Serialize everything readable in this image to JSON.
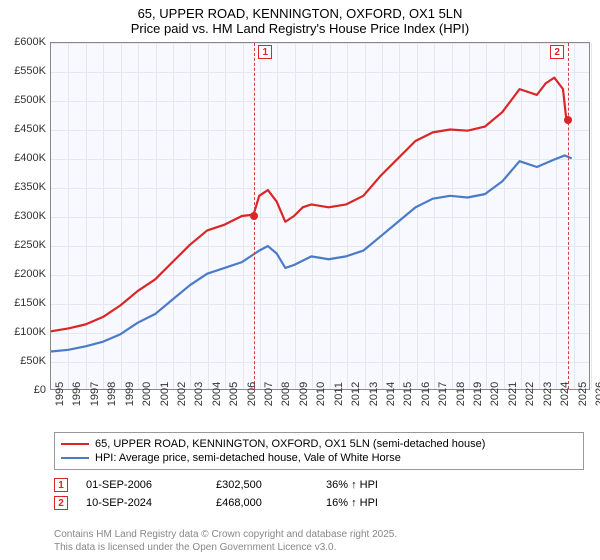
{
  "chart": {
    "type": "line",
    "title_line1": "65, UPPER ROAD, KENNINGTON, OXFORD, OX1 5LN",
    "title_line2": "Price paid vs. HM Land Registry's House Price Index (HPI)",
    "title_fontsize": 13,
    "background_color": "#f8f9ff",
    "grid_color": "#e4e6f0",
    "border_color": "#888888",
    "y_axis": {
      "min": 0,
      "max": 600000,
      "tick_step": 50000,
      "labels": [
        "£0",
        "£50K",
        "£100K",
        "£150K",
        "£200K",
        "£250K",
        "£300K",
        "£350K",
        "£400K",
        "£450K",
        "£500K",
        "£550K",
        "£600K"
      ]
    },
    "x_axis": {
      "min": 1995,
      "max": 2026,
      "tick_step": 1,
      "labels": [
        "1995",
        "1996",
        "1997",
        "1998",
        "1999",
        "2000",
        "2001",
        "2002",
        "2003",
        "2004",
        "2005",
        "2006",
        "2007",
        "2008",
        "2009",
        "2010",
        "2011",
        "2012",
        "2013",
        "2014",
        "2015",
        "2016",
        "2017",
        "2018",
        "2019",
        "2020",
        "2021",
        "2022",
        "2023",
        "2024",
        "2025",
        "2026"
      ]
    },
    "series": [
      {
        "name": "price_paid",
        "label": "65, UPPER ROAD, KENNINGTON, OXFORD, OX1 5LN (semi-detached house)",
        "color": "#d92626",
        "line_width": 2.2,
        "points": [
          [
            1995,
            100000
          ],
          [
            1996,
            105000
          ],
          [
            1997,
            112000
          ],
          [
            1998,
            125000
          ],
          [
            1999,
            145000
          ],
          [
            2000,
            170000
          ],
          [
            2001,
            190000
          ],
          [
            2002,
            220000
          ],
          [
            2003,
            250000
          ],
          [
            2004,
            275000
          ],
          [
            2005,
            285000
          ],
          [
            2006,
            300000
          ],
          [
            2006.67,
            302500
          ],
          [
            2007,
            335000
          ],
          [
            2007.5,
            345000
          ],
          [
            2008,
            325000
          ],
          [
            2008.5,
            290000
          ],
          [
            2009,
            300000
          ],
          [
            2009.5,
            315000
          ],
          [
            2010,
            320000
          ],
          [
            2011,
            315000
          ],
          [
            2012,
            320000
          ],
          [
            2013,
            335000
          ],
          [
            2014,
            370000
          ],
          [
            2015,
            400000
          ],
          [
            2016,
            430000
          ],
          [
            2017,
            445000
          ],
          [
            2018,
            450000
          ],
          [
            2019,
            448000
          ],
          [
            2020,
            455000
          ],
          [
            2021,
            480000
          ],
          [
            2022,
            520000
          ],
          [
            2023,
            510000
          ],
          [
            2023.5,
            530000
          ],
          [
            2024,
            540000
          ],
          [
            2024.5,
            520000
          ],
          [
            2024.69,
            468000
          ]
        ]
      },
      {
        "name": "hpi",
        "label": "HPI: Average price, semi-detached house, Vale of White Horse",
        "color": "#4a7bc8",
        "line_width": 2.2,
        "points": [
          [
            1995,
            65000
          ],
          [
            1996,
            68000
          ],
          [
            1997,
            74000
          ],
          [
            1998,
            82000
          ],
          [
            1999,
            95000
          ],
          [
            2000,
            115000
          ],
          [
            2001,
            130000
          ],
          [
            2002,
            155000
          ],
          [
            2003,
            180000
          ],
          [
            2004,
            200000
          ],
          [
            2005,
            210000
          ],
          [
            2006,
            220000
          ],
          [
            2007,
            240000
          ],
          [
            2007.5,
            248000
          ],
          [
            2008,
            235000
          ],
          [
            2008.5,
            210000
          ],
          [
            2009,
            215000
          ],
          [
            2010,
            230000
          ],
          [
            2011,
            225000
          ],
          [
            2012,
            230000
          ],
          [
            2013,
            240000
          ],
          [
            2014,
            265000
          ],
          [
            2015,
            290000
          ],
          [
            2016,
            315000
          ],
          [
            2017,
            330000
          ],
          [
            2018,
            335000
          ],
          [
            2019,
            332000
          ],
          [
            2020,
            338000
          ],
          [
            2021,
            360000
          ],
          [
            2022,
            395000
          ],
          [
            2023,
            385000
          ],
          [
            2024,
            398000
          ],
          [
            2024.6,
            405000
          ],
          [
            2025,
            400000
          ]
        ]
      }
    ],
    "guides": [
      {
        "id": "1",
        "x": 2006.67,
        "color": "#d04040",
        "marker_border": "#d92626",
        "dot_y": 302500
      },
      {
        "id": "2",
        "x": 2024.69,
        "color": "#d04040",
        "marker_border": "#d92626",
        "dot_y": 468000
      }
    ]
  },
  "legend": {
    "rows": [
      {
        "color": "#d92626",
        "text": "65, UPPER ROAD, KENNINGTON, OXFORD, OX1 5LN (semi-detached house)"
      },
      {
        "color": "#4a7bc8",
        "text": "HPI: Average price, semi-detached house, Vale of White Horse"
      }
    ]
  },
  "data_points": [
    {
      "id": "1",
      "border": "#d92626",
      "text_color": "#d92626",
      "date": "01-SEP-2006",
      "price": "£302,500",
      "hpi": "36% ↑ HPI"
    },
    {
      "id": "2",
      "border": "#d92626",
      "text_color": "#d92626",
      "date": "10-SEP-2024",
      "price": "£468,000",
      "hpi": "16% ↑ HPI"
    }
  ],
  "attribution": {
    "line1": "Contains HM Land Registry data © Crown copyright and database right 2025.",
    "line2": "This data is licensed under the Open Government Licence v3.0."
  }
}
